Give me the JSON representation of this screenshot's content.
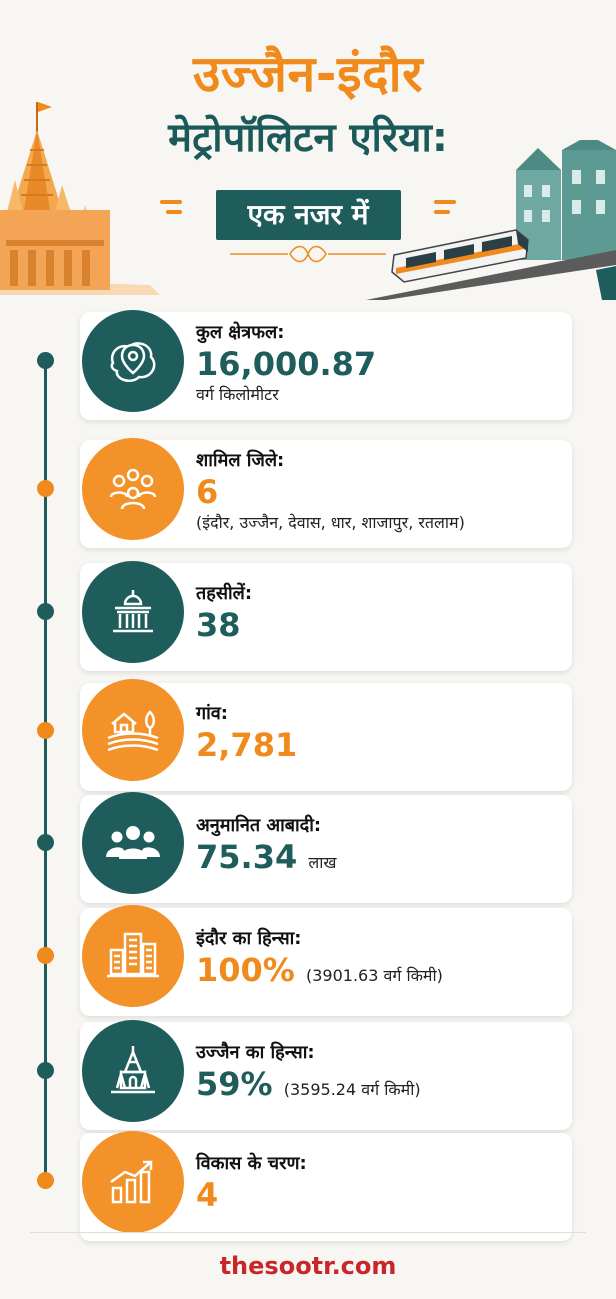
{
  "header": {
    "title_line1": "उज्जैन-इंदौर",
    "title_line2": "मेट्रोपॉलिटन एरिया:",
    "subtitle": "एक नजर में"
  },
  "colors": {
    "teal": "#1e5d5b",
    "orange": "#f08a1c",
    "footer_red": "#c9262a"
  },
  "items": [
    {
      "icon": "map-pin-area-icon",
      "label": "कुल क्षेत्रफल:",
      "value": "16,000.87",
      "note": "",
      "sub": "वर्ग किलोमीटर",
      "accent": "teal"
    },
    {
      "icon": "people-group-icon",
      "label": "शामिल जिले:",
      "value": "6",
      "note": "",
      "sub": "(इंदौर, उज्जैन, देवास, धार, शाजापुर, रतलाम)",
      "accent": "orange"
    },
    {
      "icon": "government-building-icon",
      "label": "तहसीलें:",
      "value": "38",
      "note": "",
      "sub": "",
      "accent": "teal"
    },
    {
      "icon": "village-farm-icon",
      "label": "गांव:",
      "value": "2,781",
      "note": "",
      "sub": "",
      "accent": "orange"
    },
    {
      "icon": "population-icon",
      "label": "अनुमानित आबादी:",
      "value": "75.34",
      "note": "लाख",
      "sub": "",
      "accent": "teal"
    },
    {
      "icon": "city-buildings-icon",
      "label": "इंदौर का हिन्सा:",
      "value": "100%",
      "note": "(3901.63 वर्ग किमी)",
      "sub": "",
      "accent": "orange"
    },
    {
      "icon": "temple-icon",
      "label": "उज्जैन का हिन्सा:",
      "value": "59%",
      "note": "(3595.24 वर्ग किमी)",
      "sub": "",
      "accent": "teal"
    },
    {
      "icon": "growth-chart-icon",
      "label": "विकास के चरण:",
      "value": "4",
      "note": "",
      "sub": "",
      "accent": "orange"
    }
  ],
  "footer": {
    "brand": "thesootr.com"
  }
}
